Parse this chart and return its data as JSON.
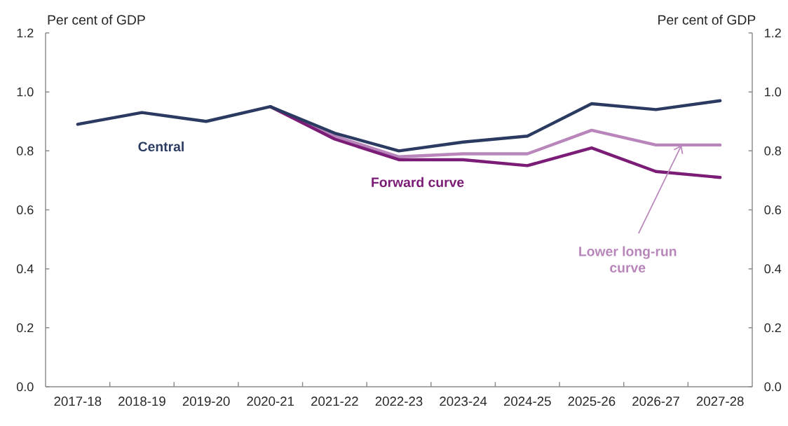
{
  "chart_data": {
    "type": "line",
    "ylabel": "Per cent of GDP",
    "y2label": "Per cent of GDP",
    "categories": [
      "2017-18",
      "2018-19",
      "2019-20",
      "2020-21",
      "2021-22",
      "2022-23",
      "2023-24",
      "2024-25",
      "2025-26",
      "2026-27",
      "2027-28"
    ],
    "series": [
      {
        "name": "Central",
        "color": "#2b3a60",
        "values": [
          0.89,
          0.93,
          0.9,
          0.95,
          0.86,
          0.8,
          0.83,
          0.85,
          0.96,
          0.94,
          0.97
        ]
      },
      {
        "name": "Forward curve",
        "color": "#7b1d76",
        "values": [
          null,
          null,
          null,
          0.95,
          0.84,
          0.77,
          0.77,
          0.75,
          0.81,
          0.73,
          0.71
        ]
      },
      {
        "name": "Lower long-run curve",
        "color": "#b886bb",
        "values": [
          null,
          null,
          null,
          0.95,
          0.85,
          0.78,
          0.79,
          0.79,
          0.87,
          0.82,
          0.82
        ]
      }
    ],
    "ylim": [
      0,
      1.2
    ],
    "yticks": [
      {
        "value": 0,
        "label": "0.0"
      },
      0.2,
      0.4,
      0.6,
      0.8,
      {
        "value": 1,
        "label": "1.0"
      },
      1.2
    ],
    "y2lim": [
      0,
      1.2
    ],
    "y2ticks": [
      {
        "value": 0,
        "label": "0.0"
      },
      0.2,
      0.4,
      0.6,
      0.8,
      {
        "value": 1,
        "label": "1.0"
      },
      1.2
    ],
    "marker": "none",
    "line_style": "solid"
  }
}
